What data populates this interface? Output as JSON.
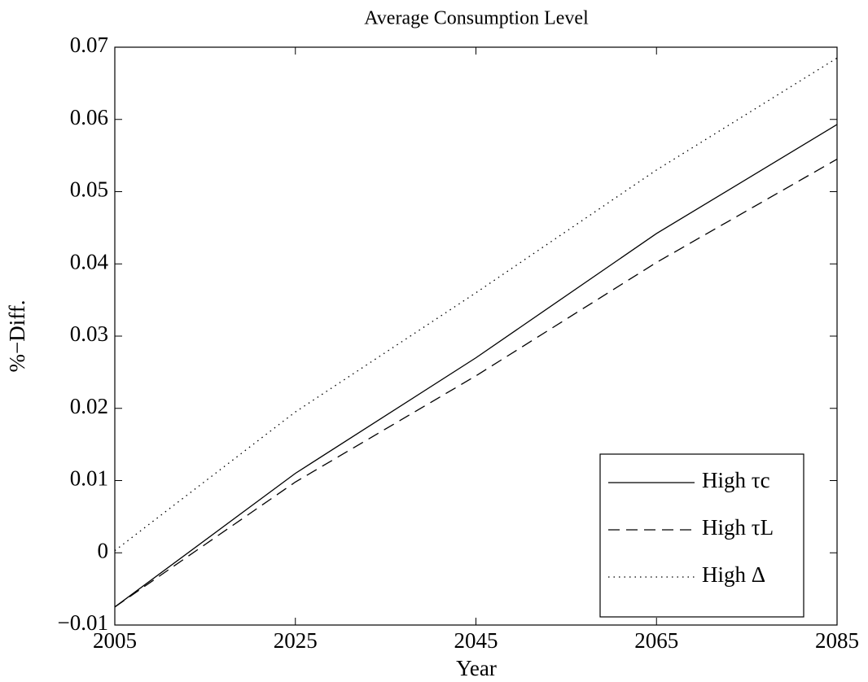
{
  "chart_data": {
    "type": "line",
    "title": "Average Consumption Level",
    "x_label": "Year",
    "y_label": "%−Diff.",
    "x": [
      2005,
      2025,
      2045,
      2065,
      2085
    ],
    "series": [
      {
        "name": "High τc",
        "color": "#000000",
        "style": "solid",
        "values": [
          -0.0075,
          0.011,
          0.027,
          0.0442,
          0.0593
        ]
      },
      {
        "name": "High τL",
        "color": "#000000",
        "style": "dashed",
        "values": [
          -0.0075,
          0.0098,
          0.0245,
          0.0402,
          0.0545
        ]
      },
      {
        "name": "High Δ",
        "color": "#000000",
        "style": "dotted",
        "values": [
          0.0003,
          0.0195,
          0.036,
          0.053,
          0.0685
        ]
      }
    ],
    "xlim": [
      2005,
      2085
    ],
    "ylim": [
      -0.01,
      0.07
    ],
    "xticks": [
      2005,
      2025,
      2045,
      2065,
      2085
    ],
    "yticks": [
      {
        "value": -0.01,
        "label": "−0.01"
      },
      0,
      0.01,
      0.02,
      0.03,
      0.04,
      0.05,
      0.06,
      0.07
    ],
    "legend": "lower right"
  }
}
